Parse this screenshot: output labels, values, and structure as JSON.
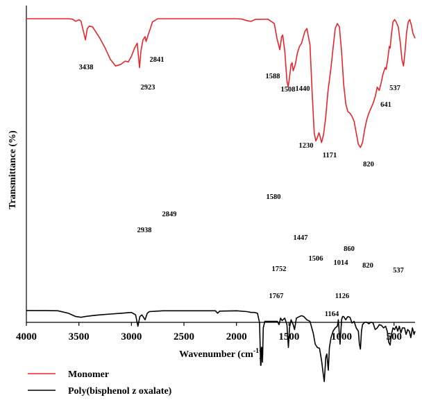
{
  "chart_data": {
    "type": "line",
    "xlabel": "Wavenumber (cm",
    "xlabel_sup": "-1",
    "xlabel_close": ")",
    "ylabel": "Transmittance (%)",
    "xlim": [
      4000,
      300
    ],
    "x_reversed": true,
    "xticks": [
      4000,
      3500,
      3000,
      2500,
      2000,
      1500,
      1000,
      500
    ],
    "grid": false,
    "legend_position": "bottom-left",
    "series": [
      {
        "name": "Monomer",
        "color": "#e8232a",
        "points": [
          [
            4000,
            0
          ],
          [
            3600,
            0
          ],
          [
            3560,
            0.3
          ],
          [
            3530,
            1.6
          ],
          [
            3500,
            0.6
          ],
          [
            3480,
            1.5
          ],
          [
            3438,
            13
          ],
          [
            3420,
            6
          ],
          [
            3400,
            4.5
          ],
          [
            3370,
            5
          ],
          [
            3340,
            8
          ],
          [
            3300,
            12
          ],
          [
            3250,
            18
          ],
          [
            3200,
            25
          ],
          [
            3150,
            29
          ],
          [
            3100,
            28
          ],
          [
            3060,
            26
          ],
          [
            3030,
            26.5
          ],
          [
            3000,
            23
          ],
          [
            2970,
            18
          ],
          [
            2945,
            15
          ],
          [
            2923,
            30
          ],
          [
            2910,
            20
          ],
          [
            2890,
            13
          ],
          [
            2870,
            11
          ],
          [
            2860,
            14
          ],
          [
            2841,
            10
          ],
          [
            2820,
            6
          ],
          [
            2800,
            2
          ],
          [
            2750,
            0
          ],
          [
            2000,
            0
          ],
          [
            1950,
            0.2
          ],
          [
            1900,
            1.2
          ],
          [
            1860,
            1.6
          ],
          [
            1820,
            0.4
          ],
          [
            1700,
            0.3
          ],
          [
            1640,
            3
          ],
          [
            1615,
            12
          ],
          [
            1588,
            19
          ],
          [
            1570,
            11
          ],
          [
            1560,
            10
          ],
          [
            1540,
            20
          ],
          [
            1520,
            38
          ],
          [
            1508,
            42
          ],
          [
            1495,
            36
          ],
          [
            1480,
            28
          ],
          [
            1470,
            27
          ],
          [
            1460,
            32
          ],
          [
            1440,
            28
          ],
          [
            1420,
            21
          ],
          [
            1400,
            17
          ],
          [
            1380,
            15
          ],
          [
            1350,
            8
          ],
          [
            1330,
            6
          ],
          [
            1300,
            16
          ],
          [
            1280,
            45
          ],
          [
            1260,
            70
          ],
          [
            1245,
            75
          ],
          [
            1230,
            73
          ],
          [
            1215,
            70
          ],
          [
            1205,
            72
          ],
          [
            1190,
            76
          ],
          [
            1171,
            71
          ],
          [
            1150,
            60
          ],
          [
            1130,
            45
          ],
          [
            1100,
            30
          ],
          [
            1080,
            18
          ],
          [
            1060,
            6
          ],
          [
            1040,
            3
          ],
          [
            1020,
            5
          ],
          [
            1000,
            20
          ],
          [
            980,
            40
          ],
          [
            960,
            52
          ],
          [
            940,
            57
          ],
          [
            920,
            58
          ],
          [
            900,
            60
          ],
          [
            880,
            63
          ],
          [
            860,
            70
          ],
          [
            840,
            77
          ],
          [
            820,
            79
          ],
          [
            800,
            76
          ],
          [
            780,
            68
          ],
          [
            760,
            62
          ],
          [
            740,
            58
          ],
          [
            720,
            55
          ],
          [
            700,
            52
          ],
          [
            680,
            48
          ],
          [
            660,
            42
          ],
          [
            641,
            44
          ],
          [
            625,
            40
          ],
          [
            605,
            34
          ],
          [
            585,
            30
          ],
          [
            575,
            31
          ],
          [
            560,
            25
          ],
          [
            545,
            17
          ],
          [
            537,
            18
          ],
          [
            525,
            10
          ],
          [
            510,
            2
          ],
          [
            495,
            0.5
          ],
          [
            480,
            2
          ],
          [
            460,
            5
          ],
          [
            440,
            15
          ],
          [
            425,
            25
          ],
          [
            410,
            29
          ],
          [
            395,
            20
          ],
          [
            380,
            8
          ],
          [
            365,
            2
          ],
          [
            350,
            0.5
          ],
          [
            335,
            4
          ],
          [
            320,
            9
          ],
          [
            300,
            12
          ]
        ]
      },
      {
        "name": "Poly(bisphenol z oxalate)",
        "color": "#000000",
        "points": [
          [
            4000,
            69.3
          ],
          [
            3800,
            69.4
          ],
          [
            3700,
            69.5
          ],
          [
            3600,
            71
          ],
          [
            3530,
            73
          ],
          [
            3480,
            73.5
          ],
          [
            3440,
            73
          ],
          [
            3380,
            72.5
          ],
          [
            3300,
            72
          ],
          [
            3200,
            71.5
          ],
          [
            3100,
            71
          ],
          [
            3000,
            70.5
          ],
          [
            2960,
            72
          ],
          [
            2938,
            79
          ],
          [
            2920,
            73
          ],
          [
            2900,
            72
          ],
          [
            2870,
            75
          ],
          [
            2849,
            71
          ],
          [
            2830,
            70
          ],
          [
            2700,
            69.5
          ],
          [
            2500,
            69.5
          ],
          [
            2300,
            69.5
          ],
          [
            2200,
            69.5
          ],
          [
            2180,
            71
          ],
          [
            2160,
            69.7
          ],
          [
            2000,
            69.5
          ],
          [
            1900,
            70
          ],
          [
            1860,
            70.5
          ],
          [
            1830,
            70.5
          ],
          [
            1800,
            71
          ],
          [
            1780,
            77
          ],
          [
            1770,
            103
          ],
          [
            1767,
            103
          ],
          [
            1762,
            92
          ],
          [
            1757,
            92
          ],
          [
            1752,
            101
          ],
          [
            1745,
            80
          ],
          [
            1730,
            76
          ],
          [
            1700,
            76
          ],
          [
            1650,
            76
          ],
          [
            1610,
            76
          ],
          [
            1595,
            78
          ],
          [
            1580,
            74
          ],
          [
            1565,
            75.5
          ],
          [
            1540,
            74
          ],
          [
            1520,
            78
          ],
          [
            1506,
            92
          ],
          [
            1495,
            80
          ],
          [
            1480,
            75
          ],
          [
            1460,
            78
          ],
          [
            1447,
            81
          ],
          [
            1430,
            74
          ],
          [
            1400,
            73
          ],
          [
            1380,
            72.5
          ],
          [
            1360,
            73
          ],
          [
            1330,
            75
          ],
          [
            1300,
            76
          ],
          [
            1270,
            83
          ],
          [
            1250,
            90
          ],
          [
            1230,
            92
          ],
          [
            1210,
            92.5
          ],
          [
            1190,
            100
          ],
          [
            1175,
            108
          ],
          [
            1164,
            113
          ],
          [
            1150,
            98
          ],
          [
            1140,
            96
          ],
          [
            1126,
            106
          ],
          [
            1115,
            92
          ],
          [
            1100,
            86
          ],
          [
            1080,
            82
          ],
          [
            1060,
            80
          ],
          [
            1040,
            79
          ],
          [
            1030,
            75
          ],
          [
            1014,
            90
          ],
          [
            1000,
            75
          ],
          [
            990,
            73
          ],
          [
            980,
            73
          ],
          [
            960,
            75
          ],
          [
            940,
            73
          ],
          [
            920,
            73.5
          ],
          [
            900,
            77
          ],
          [
            880,
            76
          ],
          [
            860,
            80
          ],
          [
            840,
            82
          ],
          [
            830,
            90
          ],
          [
            820,
            93
          ],
          [
            810,
            82
          ],
          [
            800,
            78
          ],
          [
            780,
            76.5
          ],
          [
            760,
            76.5
          ],
          [
            740,
            77.5
          ],
          [
            720,
            76.5
          ],
          [
            700,
            77
          ],
          [
            680,
            81
          ],
          [
            660,
            80
          ],
          [
            640,
            78
          ],
          [
            620,
            78.5
          ],
          [
            600,
            80
          ],
          [
            580,
            79
          ],
          [
            565,
            82
          ],
          [
            550,
            89
          ],
          [
            537,
            90.5
          ],
          [
            525,
            84
          ],
          [
            510,
            80
          ],
          [
            495,
            81
          ],
          [
            480,
            79
          ],
          [
            465,
            82
          ],
          [
            450,
            79
          ],
          [
            435,
            83
          ],
          [
            420,
            80
          ],
          [
            400,
            80
          ],
          [
            385,
            84
          ],
          [
            370,
            81
          ],
          [
            355,
            82
          ],
          [
            340,
            86
          ],
          [
            325,
            80
          ],
          [
            310,
            84
          ],
          [
            300,
            82
          ]
        ]
      }
    ],
    "annotations": [
      {
        "text": "3438",
        "series": "Monomer"
      },
      {
        "text": "2923",
        "series": "Monomer"
      },
      {
        "text": "2841",
        "series": "Monomer"
      },
      {
        "text": "1588",
        "series": "Monomer"
      },
      {
        "text": "1508",
        "series": "Monomer"
      },
      {
        "text": "1440",
        "series": "Monomer"
      },
      {
        "text": "1230",
        "series": "Monomer"
      },
      {
        "text": "1171",
        "series": "Monomer"
      },
      {
        "text": "820",
        "series": "Monomer"
      },
      {
        "text": "641",
        "series": "Monomer"
      },
      {
        "text": "537",
        "series": "Monomer"
      },
      {
        "text": "2938",
        "series": "Poly(bisphenol z oxalate)"
      },
      {
        "text": "2849",
        "series": "Poly(bisphenol z oxalate)"
      },
      {
        "text": "1580",
        "series": "Poly(bisphenol z oxalate)"
      },
      {
        "text": "1447",
        "series": "Poly(bisphenol z oxalate)"
      },
      {
        "text": "1752",
        "series": "Poly(bisphenol z oxalate)"
      },
      {
        "text": "1506",
        "series": "Poly(bisphenol z oxalate)"
      },
      {
        "text": "1767",
        "series": "Poly(bisphenol z oxalate)"
      },
      {
        "text": "860",
        "series": "Poly(bisphenol z oxalate)"
      },
      {
        "text": "1014",
        "series": "Poly(bisphenol z oxalate)"
      },
      {
        "text": "820",
        "series": "Poly(bisphenol z oxalate)"
      },
      {
        "text": "537",
        "series": "Poly(bisphenol z oxalate)"
      },
      {
        "text": "1126",
        "series": "Poly(bisphenol z oxalate)"
      },
      {
        "text": "1164",
        "series": "Poly(bisphenol z oxalate)"
      }
    ]
  }
}
